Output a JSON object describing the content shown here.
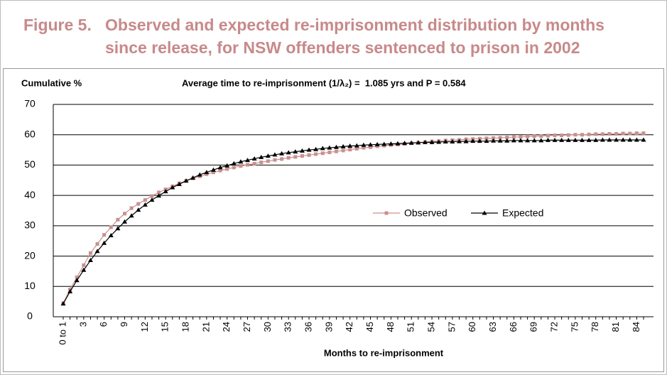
{
  "chart_data": {
    "type": "line",
    "title": "Figure 5.   Observed and expected re-imprisonment distribution by months",
    "title_line2": "since release, for NSW offenders sentenced to prison in 2002",
    "y_label": "Cumulative %",
    "subtitle": "Average time to re-imprisonment (1/λ₂) =  1.085 yrs and P = 0.584",
    "x_label": "Months to re-imprisonment",
    "categories": [
      "0 to 1",
      null,
      null,
      "3",
      null,
      null,
      "6",
      null,
      null,
      "9",
      null,
      null,
      "12",
      null,
      null,
      "15",
      null,
      null,
      "18",
      null,
      null,
      "21",
      null,
      null,
      "24",
      null,
      null,
      "27",
      null,
      null,
      "30",
      null,
      null,
      "33",
      null,
      null,
      "36",
      null,
      null,
      "39",
      null,
      null,
      "42",
      null,
      null,
      "45",
      null,
      null,
      "48",
      null,
      null,
      "51",
      null,
      null,
      "54",
      null,
      null,
      "57",
      null,
      null,
      "60",
      null,
      null,
      "63",
      null,
      null,
      "66",
      null,
      null,
      "69",
      null,
      null,
      "72",
      null,
      null,
      "75",
      null,
      null,
      "78",
      null,
      null,
      "81",
      null,
      null,
      "84",
      null
    ],
    "series": [
      {
        "name": "Observed",
        "color": "#c9908f",
        "marker": "square",
        "values": [
          4.5,
          9,
          13,
          17,
          21,
          24,
          27,
          29.5,
          32,
          34,
          35.8,
          37.2,
          38.5,
          39.8,
          41,
          42,
          43,
          44,
          44.8,
          45.6,
          46.3,
          47,
          47.6,
          48.2,
          48.7,
          49.2,
          49.7,
          50.1,
          50.5,
          50.9,
          51.3,
          51.7,
          52.0,
          52.4,
          52.7,
          53.0,
          53.3,
          53.6,
          53.9,
          54.2,
          54.5,
          54.8,
          55.1,
          55.4,
          55.7,
          55.9,
          56.2,
          56.4,
          56.6,
          56.8,
          57.0,
          57.2,
          57.4,
          57.6,
          57.8,
          57.9,
          58.1,
          58.2,
          58.3,
          58.5,
          58.6,
          58.7,
          58.8,
          58.9,
          59.0,
          59.1,
          59.2,
          59.3,
          59.4,
          59.5,
          59.6,
          59.7,
          59.8,
          59.8,
          59.9,
          60.0,
          60.0,
          60.1,
          60.2,
          60.2,
          60.3,
          60.3,
          60.4,
          60.4,
          60.5,
          60.5
        ]
      },
      {
        "name": "Expected",
        "color": "#000000",
        "marker": "triangle",
        "values": [
          4.3,
          8.3,
          12.0,
          15.4,
          18.6,
          21.6,
          24.3,
          26.8,
          29.1,
          31.3,
          33.3,
          35.2,
          36.9,
          38.5,
          39.9,
          41.3,
          42.6,
          43.7,
          44.8,
          45.8,
          46.8,
          47.6,
          48.4,
          49.2,
          49.8,
          50.5,
          51.1,
          51.6,
          52.1,
          52.6,
          53.0,
          53.4,
          53.8,
          54.1,
          54.4,
          54.7,
          55.0,
          55.2,
          55.5,
          55.7,
          55.9,
          56.1,
          56.3,
          56.4,
          56.6,
          56.7,
          56.8,
          56.9,
          57.0,
          57.1,
          57.2,
          57.3,
          57.4,
          57.5,
          57.5,
          57.6,
          57.7,
          57.7,
          57.8,
          57.8,
          57.9,
          57.9,
          57.9,
          58.0,
          58.0,
          58.0,
          58.1,
          58.1,
          58.1,
          58.1,
          58.1,
          58.2,
          58.2,
          58.2,
          58.2,
          58.2,
          58.2,
          58.2,
          58.2,
          58.3,
          58.3,
          58.3,
          58.3,
          58.3,
          58.3,
          58.3
        ]
      }
    ],
    "ylim": [
      0,
      70
    ],
    "yticks": [
      0,
      10,
      20,
      30,
      40,
      50,
      60,
      70
    ],
    "grid": true,
    "legend": "center"
  }
}
